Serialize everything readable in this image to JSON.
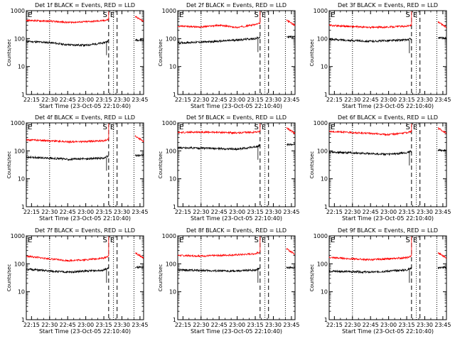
{
  "chart_data": [
    {
      "type": "line",
      "title": "Det 1f BLACK = Events, RED = LLD",
      "xlabel": "Start Time (23-Oct-05 22:10:40)",
      "ylabel": "Counts/sec",
      "x_ticks": [
        "22:15",
        "22:30",
        "22:45",
        "23:00",
        "23:15",
        "23:30",
        "23:45"
      ],
      "y_ticks": [
        "1",
        "10",
        "100",
        "1000"
      ],
      "ylim": [
        1,
        1000
      ],
      "yscale": "log",
      "annotations": [
        "S",
        "E"
      ],
      "series": [
        {
          "name": "Events",
          "color": "#000000",
          "x": [
            "22:10",
            "22:30",
            "22:45",
            "23:00",
            "23:15",
            "23:19"
          ],
          "y": [
            80,
            72,
            60,
            58,
            70,
            85
          ]
        },
        {
          "name": "LLD",
          "color": "#ff0000",
          "x": [
            "22:10",
            "22:30",
            "22:45",
            "23:00",
            "23:15",
            "23:19"
          ],
          "y": [
            450,
            420,
            380,
            400,
            440,
            480
          ]
        }
      ]
    },
    {
      "type": "line",
      "title": "Det 2f BLACK = Events, RED = LLD",
      "xlabel": "Start Time (23-Oct-05 22:10:40)",
      "ylabel": "Counts/sec",
      "x_ticks": [
        "22:15",
        "22:30",
        "22:45",
        "23:00",
        "23:15",
        "23:30",
        "23:45"
      ],
      "y_ticks": [
        "1",
        "10",
        "100",
        "1000"
      ],
      "ylim": [
        1,
        1000
      ],
      "yscale": "log",
      "annotations": [
        "S",
        "E"
      ],
      "series": [
        {
          "name": "Events",
          "color": "#000000",
          "x": [
            "22:10",
            "22:30",
            "22:45",
            "23:00",
            "23:15",
            "23:19"
          ],
          "y": [
            70,
            75,
            80,
            90,
            100,
            110
          ]
        },
        {
          "name": "LLD",
          "color": "#ff0000",
          "x": [
            "22:10",
            "22:30",
            "22:45",
            "23:00",
            "23:15",
            "23:19"
          ],
          "y": [
            280,
            260,
            300,
            250,
            320,
            350
          ]
        }
      ]
    },
    {
      "type": "line",
      "title": "Det 3f BLACK = Events, RED = LLD",
      "xlabel": "Start Time (23-Oct-05 22:10:40)",
      "ylabel": "Counts/sec",
      "x_ticks": [
        "22:15",
        "22:30",
        "22:45",
        "23:00",
        "23:15",
        "23:30",
        "23:45"
      ],
      "y_ticks": [
        "1",
        "10",
        "100",
        "1000"
      ],
      "ylim": [
        1,
        1000
      ],
      "yscale": "log",
      "annotations": [
        "S",
        "E"
      ],
      "series": [
        {
          "name": "Events",
          "color": "#000000",
          "x": [
            "22:10",
            "22:30",
            "22:45",
            "23:00",
            "23:15",
            "23:19"
          ],
          "y": [
            95,
            85,
            80,
            85,
            90,
            100
          ]
        },
        {
          "name": "LLD",
          "color": "#ff0000",
          "x": [
            "22:10",
            "22:30",
            "22:45",
            "23:00",
            "23:15",
            "23:19"
          ],
          "y": [
            300,
            270,
            250,
            260,
            280,
            300
          ]
        }
      ]
    },
    {
      "type": "line",
      "title": "Det 4f BLACK = Events, RED = LLD",
      "xlabel": "Start Time (23-Oct-05 22:10:40)",
      "ylabel": "Counts/sec",
      "x_ticks": [
        "22:15",
        "22:30",
        "22:45",
        "23:00",
        "23:15",
        "23:30",
        "23:45"
      ],
      "y_ticks": [
        "1",
        "10",
        "100",
        "1000"
      ],
      "ylim": [
        1,
        1000
      ],
      "yscale": "log",
      "annotations": [
        "S",
        "E"
      ],
      "series": [
        {
          "name": "Events",
          "color": "#000000",
          "x": [
            "22:10",
            "22:30",
            "22:45",
            "23:00",
            "23:15",
            "23:19"
          ],
          "y": [
            60,
            55,
            50,
            52,
            55,
            65
          ]
        },
        {
          "name": "LLD",
          "color": "#ff0000",
          "x": [
            "22:10",
            "22:30",
            "22:45",
            "23:00",
            "23:15",
            "23:19"
          ],
          "y": [
            250,
            230,
            210,
            215,
            230,
            260
          ]
        }
      ]
    },
    {
      "type": "line",
      "title": "Det 5f BLACK = Events, RED = LLD",
      "xlabel": "Start Time (23-Oct-05 22:10:40)",
      "ylabel": "Counts/sec",
      "x_ticks": [
        "22:15",
        "22:30",
        "22:45",
        "23:00",
        "23:15",
        "23:30",
        "23:45"
      ],
      "y_ticks": [
        "1",
        "10",
        "100",
        "1000"
      ],
      "ylim": [
        1,
        1000
      ],
      "yscale": "log",
      "annotations": [
        "S",
        "E"
      ],
      "series": [
        {
          "name": "Events",
          "color": "#000000",
          "x": [
            "22:10",
            "22:30",
            "22:45",
            "23:00",
            "23:15",
            "23:19"
          ],
          "y": [
            130,
            125,
            120,
            115,
            140,
            160
          ]
        },
        {
          "name": "LLD",
          "color": "#ff0000",
          "x": [
            "22:10",
            "22:30",
            "22:45",
            "23:00",
            "23:15",
            "23:19"
          ],
          "y": [
            450,
            470,
            460,
            440,
            470,
            500
          ]
        }
      ]
    },
    {
      "type": "line",
      "title": "Det 6f BLACK = Events, RED = LLD",
      "xlabel": "Start Time (23-Oct-05 22:10:40)",
      "ylabel": "Counts/sec",
      "x_ticks": [
        "22:15",
        "22:30",
        "22:45",
        "23:00",
        "23:15",
        "23:30",
        "23:45"
      ],
      "y_ticks": [
        "1",
        "10",
        "100",
        "1000"
      ],
      "ylim": [
        1,
        1000
      ],
      "yscale": "log",
      "annotations": [
        "S",
        "E"
      ],
      "series": [
        {
          "name": "Events",
          "color": "#000000",
          "x": [
            "22:10",
            "22:30",
            "22:45",
            "23:00",
            "23:15",
            "23:19"
          ],
          "y": [
            90,
            85,
            80,
            75,
            85,
            100
          ]
        },
        {
          "name": "LLD",
          "color": "#ff0000",
          "x": [
            "22:10",
            "22:30",
            "22:45",
            "23:00",
            "23:15",
            "23:19"
          ],
          "y": [
            500,
            450,
            420,
            380,
            450,
            500
          ]
        }
      ]
    },
    {
      "type": "line",
      "title": "Det 7f BLACK = Events, RED = LLD",
      "xlabel": "Start Time (23-Oct-05 22:10:40)",
      "ylabel": "Counts/sec",
      "x_ticks": [
        "22:15",
        "22:30",
        "22:45",
        "23:00",
        "23:15",
        "23:30",
        "23:45"
      ],
      "y_ticks": [
        "1",
        "10",
        "100",
        "1000"
      ],
      "ylim": [
        1,
        1000
      ],
      "yscale": "log",
      "annotations": [
        "S",
        "E"
      ],
      "series": [
        {
          "name": "Events",
          "color": "#000000",
          "x": [
            "22:10",
            "22:30",
            "22:45",
            "23:00",
            "23:15",
            "23:19"
          ],
          "y": [
            65,
            55,
            50,
            55,
            60,
            70
          ]
        },
        {
          "name": "LLD",
          "color": "#ff0000",
          "x": [
            "22:10",
            "22:30",
            "22:45",
            "23:00",
            "23:15",
            "23:19"
          ],
          "y": [
            190,
            150,
            130,
            140,
            160,
            190
          ]
        }
      ]
    },
    {
      "type": "line",
      "title": "Det 8f BLACK = Events, RED = LLD",
      "xlabel": "Start Time (23-Oct-05 22:10:40)",
      "ylabel": "Counts/sec",
      "x_ticks": [
        "22:15",
        "22:30",
        "22:45",
        "23:00",
        "23:15",
        "23:30",
        "23:45"
      ],
      "y_ticks": [
        "1",
        "10",
        "100",
        "1000"
      ],
      "ylim": [
        1,
        1000
      ],
      "yscale": "log",
      "annotations": [
        "S",
        "E"
      ],
      "series": [
        {
          "name": "Events",
          "color": "#000000",
          "x": [
            "22:10",
            "22:30",
            "22:45",
            "23:00",
            "23:15",
            "23:19"
          ],
          "y": [
            60,
            58,
            55,
            55,
            60,
            70
          ]
        },
        {
          "name": "LLD",
          "color": "#ff0000",
          "x": [
            "22:10",
            "22:30",
            "22:45",
            "23:00",
            "23:15",
            "23:19"
          ],
          "y": [
            200,
            190,
            200,
            210,
            230,
            260
          ]
        }
      ]
    },
    {
      "type": "line",
      "title": "Det 9f BLACK = Events, RED = LLD",
      "xlabel": "Start Time (23-Oct-05 22:10:40)",
      "ylabel": "Counts/sec",
      "x_ticks": [
        "22:15",
        "22:30",
        "22:45",
        "23:00",
        "23:15",
        "23:30",
        "23:45"
      ],
      "y_ticks": [
        "1",
        "10",
        "100",
        "1000"
      ],
      "ylim": [
        1,
        1000
      ],
      "yscale": "log",
      "annotations": [
        "S",
        "E"
      ],
      "series": [
        {
          "name": "Events",
          "color": "#000000",
          "x": [
            "22:10",
            "22:30",
            "22:45",
            "23:00",
            "23:15",
            "23:19"
          ],
          "y": [
            55,
            52,
            50,
            55,
            60,
            70
          ]
        },
        {
          "name": "LLD",
          "color": "#ff0000",
          "x": [
            "22:10",
            "22:30",
            "22:45",
            "23:00",
            "23:15",
            "23:19"
          ],
          "y": [
            170,
            150,
            140,
            150,
            165,
            190
          ]
        }
      ]
    }
  ]
}
